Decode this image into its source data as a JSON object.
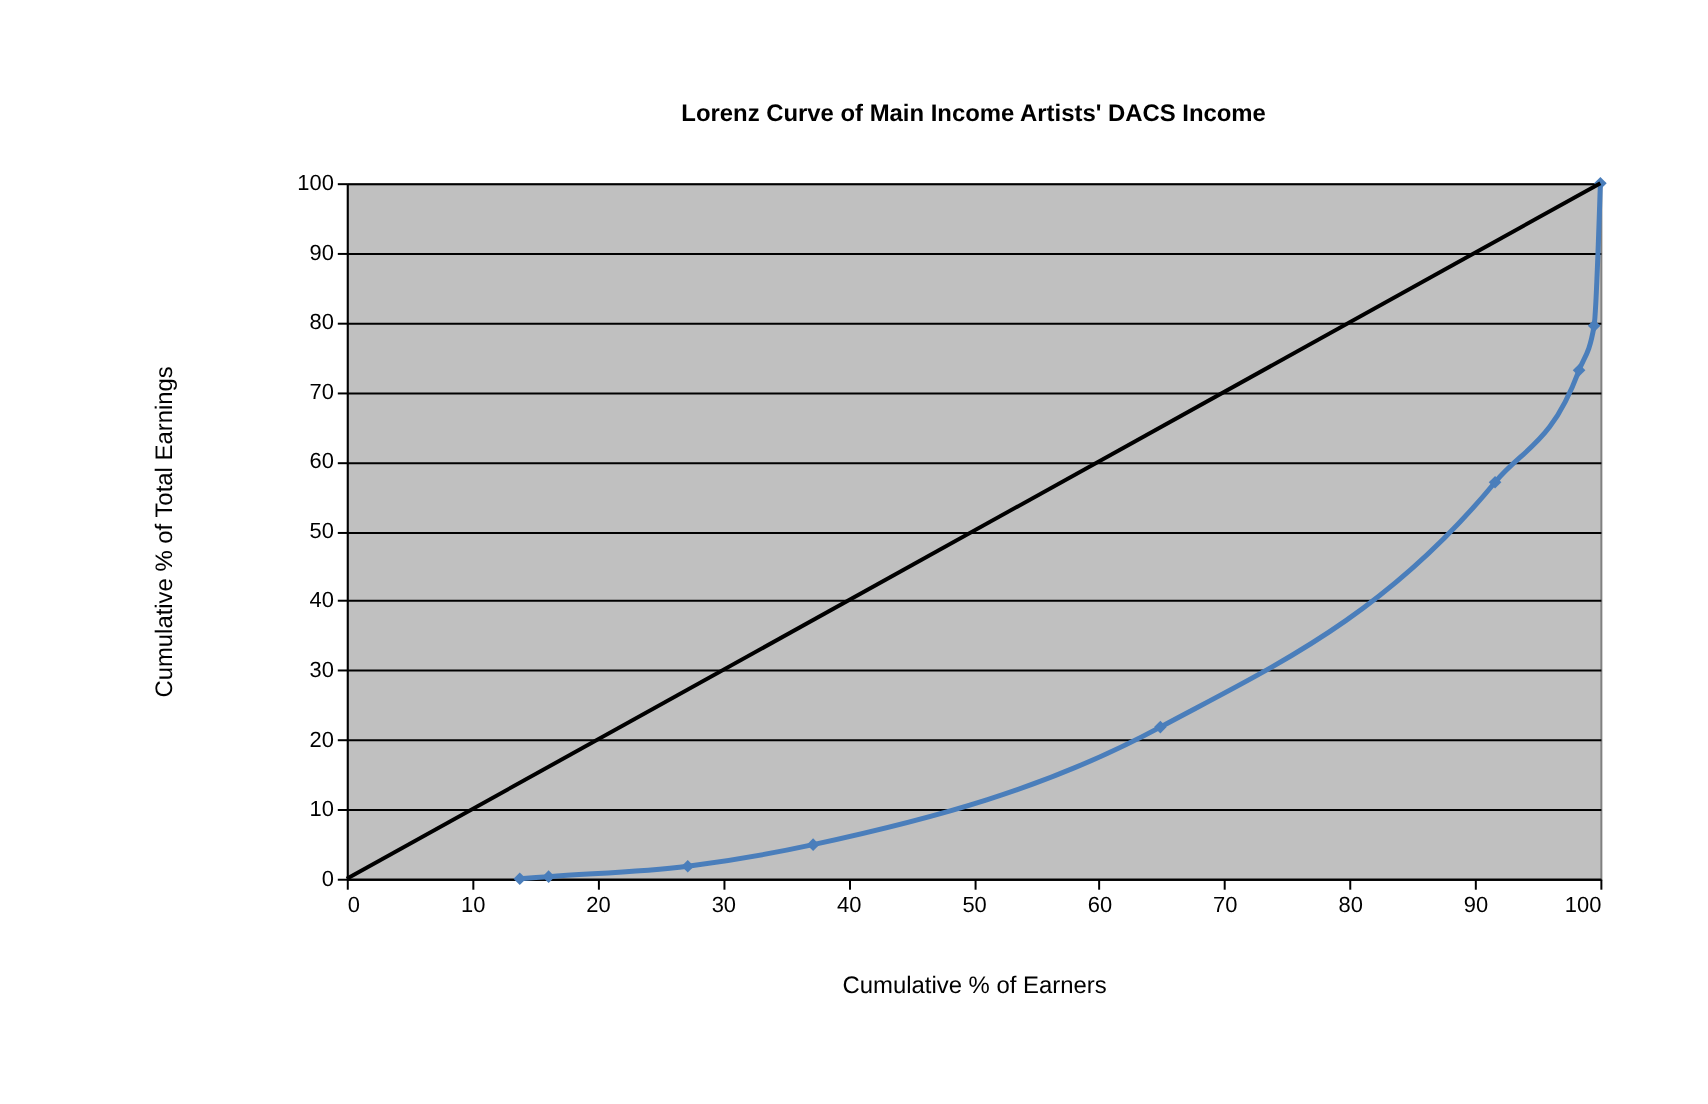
{
  "chart_data": {
    "type": "line",
    "title": "Lorenz Curve of Main Income Artists' DACS Income",
    "xlabel": "Cumulative % of Earners",
    "ylabel": "Cumulative % of Total Earnings",
    "series": [
      {
        "color": "#4a7ebb",
        "marker": "diamond",
        "x": [
          13.8,
          16.1,
          27.2,
          37.2,
          64.9,
          91.6,
          98.3,
          99.5,
          100
        ],
        "values": [
          0,
          0.3,
          1.8,
          4.9,
          21.8,
          57.0,
          73.1,
          79.5,
          100
        ]
      },
      {
        "color": "#000000",
        "marker": "none",
        "x": [
          0,
          100
        ],
        "values": [
          0,
          100
        ]
      }
    ],
    "xlim": [
      0,
      100
    ],
    "xticks": [
      0,
      10,
      20,
      30,
      40,
      50,
      60,
      70,
      80,
      90,
      100
    ],
    "ylim": [
      0,
      100
    ],
    "yticks": [
      0,
      10,
      20,
      30,
      40,
      50,
      60,
      70,
      80,
      90,
      100
    ],
    "grid": "y",
    "legend": false
  }
}
